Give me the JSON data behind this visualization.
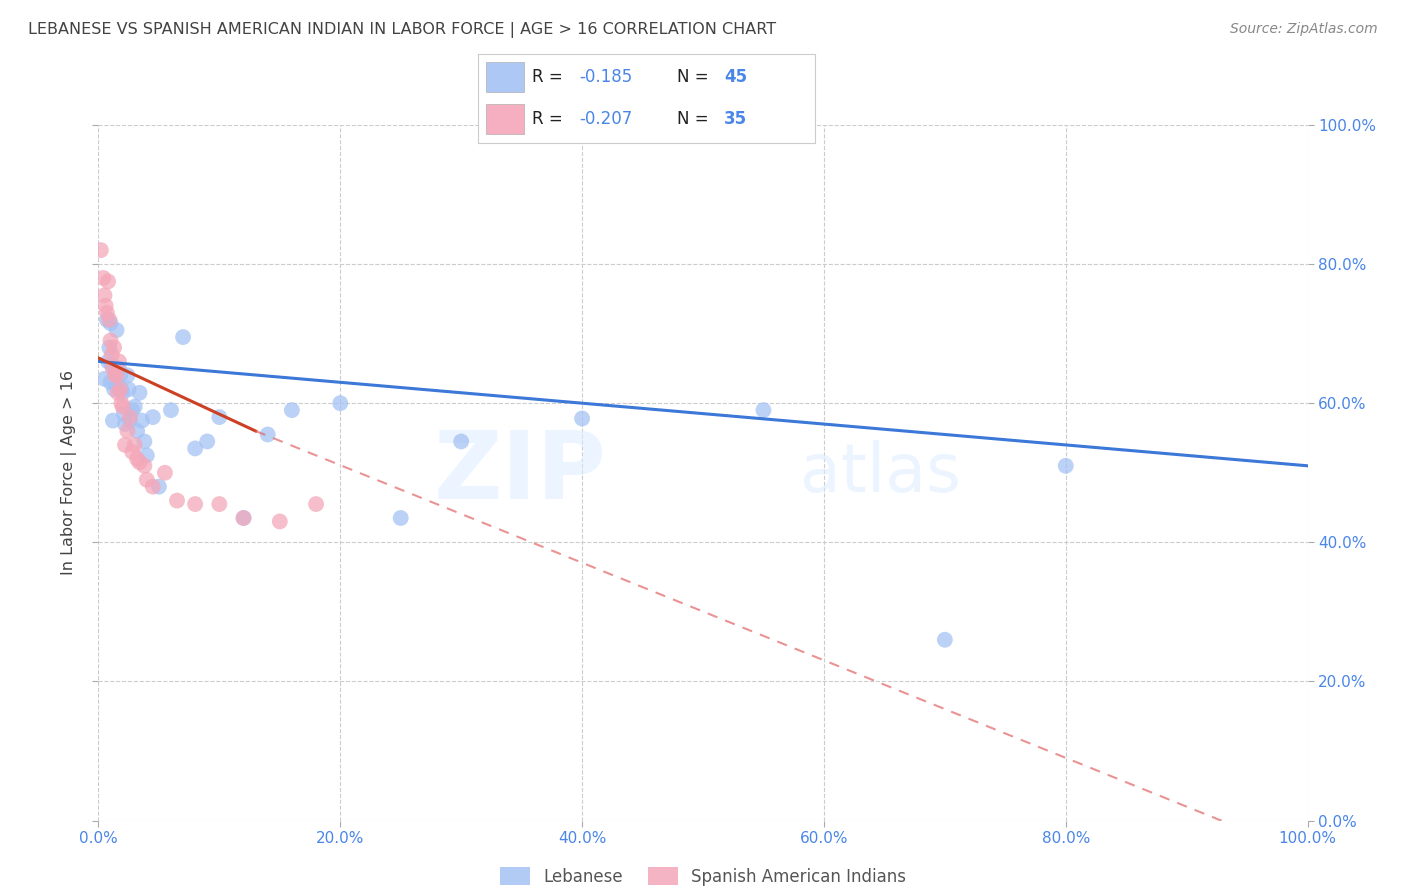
{
  "title": "LEBANESE VS SPANISH AMERICAN INDIAN IN LABOR FORCE | AGE > 16 CORRELATION CHART",
  "source": "Source: ZipAtlas.com",
  "ylabel": "In Labor Force | Age > 16",
  "xlim": [
    0.0,
    1.0
  ],
  "ylim": [
    0.0,
    1.0
  ],
  "xticks": [
    0.0,
    0.2,
    0.4,
    0.6,
    0.8,
    1.0
  ],
  "yticks": [
    0.0,
    0.2,
    0.4,
    0.6,
    0.8,
    1.0
  ],
  "watermark_zip": "ZIP",
  "watermark_atlas": "atlas",
  "legend_r_label1": "R = ",
  "legend_r_val1": "-0.185",
  "legend_n_label1": "N = ",
  "legend_n_val1": "45",
  "legend_r_label2": "R = ",
  "legend_r_val2": "-0.207",
  "legend_n_label2": "N = ",
  "legend_n_val2": "35",
  "blue_scatter_color": "#a4c2f4",
  "pink_scatter_color": "#f4a7b9",
  "blue_line_color": "#3c78d8",
  "pink_line_color": "#cc4125",
  "pink_dash_color": "#e06666",
  "grid_color": "#cccccc",
  "title_color": "#434343",
  "axis_tick_color": "#4a86e8",
  "legend_label_color": "#000000",
  "legend_val_color": "#4a86e8",
  "source_color": "#888888",
  "lebanese_x": [
    0.005,
    0.007,
    0.008,
    0.009,
    0.01,
    0.01,
    0.011,
    0.012,
    0.013,
    0.014,
    0.015,
    0.016,
    0.017,
    0.018,
    0.019,
    0.02,
    0.021,
    0.022,
    0.024,
    0.025,
    0.026,
    0.028,
    0.03,
    0.032,
    0.034,
    0.036,
    0.038,
    0.04,
    0.045,
    0.05,
    0.06,
    0.07,
    0.08,
    0.09,
    0.1,
    0.12,
    0.14,
    0.16,
    0.2,
    0.25,
    0.3,
    0.4,
    0.55,
    0.7,
    0.8
  ],
  "lebanese_y": [
    0.635,
    0.72,
    0.66,
    0.68,
    0.715,
    0.63,
    0.655,
    0.575,
    0.62,
    0.645,
    0.705,
    0.625,
    0.65,
    0.64,
    0.62,
    0.615,
    0.585,
    0.57,
    0.64,
    0.62,
    0.575,
    0.59,
    0.595,
    0.56,
    0.615,
    0.575,
    0.545,
    0.525,
    0.58,
    0.48,
    0.59,
    0.695,
    0.535,
    0.545,
    0.58,
    0.435,
    0.555,
    0.59,
    0.6,
    0.435,
    0.545,
    0.578,
    0.59,
    0.26,
    0.51
  ],
  "spanish_x": [
    0.002,
    0.004,
    0.005,
    0.006,
    0.007,
    0.008,
    0.009,
    0.01,
    0.011,
    0.012,
    0.013,
    0.014,
    0.015,
    0.016,
    0.017,
    0.018,
    0.019,
    0.02,
    0.022,
    0.024,
    0.026,
    0.028,
    0.03,
    0.032,
    0.034,
    0.038,
    0.04,
    0.045,
    0.055,
    0.065,
    0.08,
    0.1,
    0.12,
    0.15,
    0.18
  ],
  "spanish_y": [
    0.82,
    0.78,
    0.755,
    0.74,
    0.73,
    0.775,
    0.72,
    0.69,
    0.67,
    0.65,
    0.68,
    0.64,
    0.64,
    0.615,
    0.66,
    0.62,
    0.6,
    0.595,
    0.54,
    0.56,
    0.58,
    0.53,
    0.54,
    0.52,
    0.515,
    0.51,
    0.49,
    0.48,
    0.5,
    0.46,
    0.455,
    0.455,
    0.435,
    0.43,
    0.455
  ],
  "blue_trend": [
    0.0,
    1.0,
    0.66,
    0.51
  ],
  "pink_solid_trend": [
    0.0,
    0.13,
    0.665,
    0.56
  ],
  "pink_dash_trend": [
    0.13,
    1.0,
    0.56,
    -0.05
  ]
}
